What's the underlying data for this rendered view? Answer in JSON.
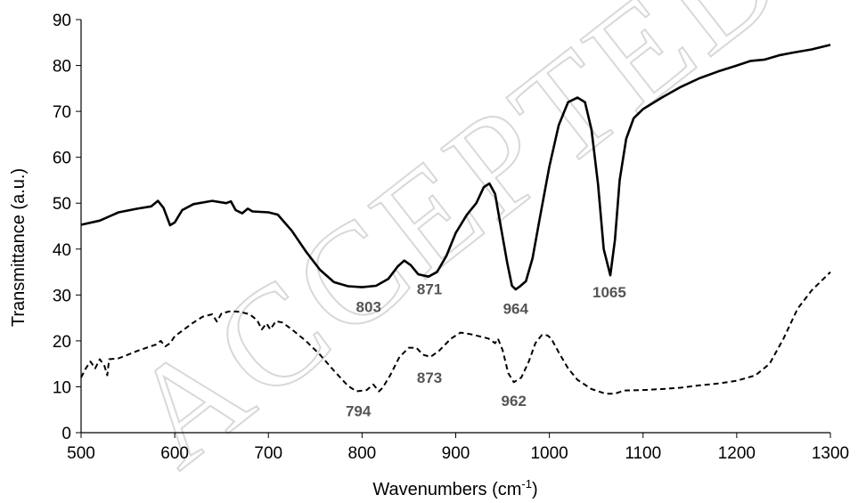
{
  "watermark": "ACCEPTED",
  "chart_data": {
    "type": "line",
    "title": "",
    "xlabel": "Wavenumbers (cm",
    "xlabel_sup": "-1",
    "xlabel_close": ")",
    "ylabel": "Transmittance (a.u.)",
    "xlim": [
      500,
      1300
    ],
    "ylim": [
      0,
      90
    ],
    "xticks": [
      500,
      600,
      700,
      800,
      900,
      1000,
      1100,
      1200,
      1300
    ],
    "yticks": [
      0,
      10,
      20,
      30,
      40,
      50,
      60,
      70,
      80,
      90
    ],
    "grid": false,
    "legend": "none",
    "series": [
      {
        "style": "solid",
        "color": "#000000",
        "points": [
          [
            500,
            45.3
          ],
          [
            520,
            46.2
          ],
          [
            540,
            48.0
          ],
          [
            560,
            48.8
          ],
          [
            575,
            49.3
          ],
          [
            582,
            50.5
          ],
          [
            588,
            49.0
          ],
          [
            595,
            45.2
          ],
          [
            600,
            45.8
          ],
          [
            608,
            48.5
          ],
          [
            620,
            49.8
          ],
          [
            640,
            50.5
          ],
          [
            655,
            50.0
          ],
          [
            660,
            50.4
          ],
          [
            665,
            48.5
          ],
          [
            672,
            47.8
          ],
          [
            678,
            48.8
          ],
          [
            683,
            48.2
          ],
          [
            700,
            48.0
          ],
          [
            710,
            47.5
          ],
          [
            725,
            44.0
          ],
          [
            740,
            39.5
          ],
          [
            755,
            35.5
          ],
          [
            770,
            32.8
          ],
          [
            785,
            31.9
          ],
          [
            800,
            31.7
          ],
          [
            815,
            32.0
          ],
          [
            828,
            33.5
          ],
          [
            838,
            36.2
          ],
          [
            845,
            37.5
          ],
          [
            852,
            36.5
          ],
          [
            860,
            34.5
          ],
          [
            871,
            34.0
          ],
          [
            880,
            35.0
          ],
          [
            890,
            38.5
          ],
          [
            900,
            43.5
          ],
          [
            912,
            47.5
          ],
          [
            922,
            50.0
          ],
          [
            930,
            53.5
          ],
          [
            936,
            54.3
          ],
          [
            942,
            52.0
          ],
          [
            948,
            45.0
          ],
          [
            955,
            37.0
          ],
          [
            960,
            32.0
          ],
          [
            964,
            31.2
          ],
          [
            968,
            31.8
          ],
          [
            975,
            33.0
          ],
          [
            982,
            38.0
          ],
          [
            990,
            47.0
          ],
          [
            1000,
            58.0
          ],
          [
            1010,
            67.0
          ],
          [
            1020,
            72.0
          ],
          [
            1030,
            73.0
          ],
          [
            1038,
            72.0
          ],
          [
            1045,
            66.0
          ],
          [
            1052,
            54.0
          ],
          [
            1058,
            40.0
          ],
          [
            1065,
            34.3
          ],
          [
            1070,
            42.0
          ],
          [
            1075,
            55.0
          ],
          [
            1082,
            64.0
          ],
          [
            1090,
            68.5
          ],
          [
            1100,
            70.5
          ],
          [
            1120,
            73.0
          ],
          [
            1140,
            75.3
          ],
          [
            1160,
            77.2
          ],
          [
            1180,
            78.7
          ],
          [
            1200,
            80.0
          ],
          [
            1215,
            81.0
          ],
          [
            1230,
            81.3
          ],
          [
            1245,
            82.2
          ],
          [
            1260,
            82.8
          ],
          [
            1280,
            83.5
          ],
          [
            1300,
            84.5
          ]
        ]
      },
      {
        "style": "dashed",
        "color": "#000000",
        "points": [
          [
            500,
            12.0
          ],
          [
            505,
            14.0
          ],
          [
            510,
            15.5
          ],
          [
            515,
            14.0
          ],
          [
            520,
            16.0
          ],
          [
            525,
            14.5
          ],
          [
            528,
            12.5
          ],
          [
            530,
            16.0
          ],
          [
            540,
            16.2
          ],
          [
            550,
            17.0
          ],
          [
            560,
            17.8
          ],
          [
            570,
            18.5
          ],
          [
            580,
            19.2
          ],
          [
            585,
            20.0
          ],
          [
            590,
            18.8
          ],
          [
            595,
            19.5
          ],
          [
            600,
            21.0
          ],
          [
            610,
            22.5
          ],
          [
            620,
            24.0
          ],
          [
            630,
            25.3
          ],
          [
            640,
            25.8
          ],
          [
            645,
            24.2
          ],
          [
            650,
            26.0
          ],
          [
            660,
            26.5
          ],
          [
            670,
            26.3
          ],
          [
            680,
            25.8
          ],
          [
            688,
            24.5
          ],
          [
            693,
            22.5
          ],
          [
            698,
            23.8
          ],
          [
            702,
            22.5
          ],
          [
            708,
            24.3
          ],
          [
            715,
            24.0
          ],
          [
            725,
            22.5
          ],
          [
            740,
            20.0
          ],
          [
            755,
            17.0
          ],
          [
            770,
            13.5
          ],
          [
            785,
            10.2
          ],
          [
            794,
            9.0
          ],
          [
            805,
            9.3
          ],
          [
            812,
            10.5
          ],
          [
            818,
            9.0
          ],
          [
            822,
            9.8
          ],
          [
            830,
            12.5
          ],
          [
            840,
            16.5
          ],
          [
            850,
            18.5
          ],
          [
            858,
            18.5
          ],
          [
            865,
            17.0
          ],
          [
            873,
            16.5
          ],
          [
            882,
            17.8
          ],
          [
            895,
            20.5
          ],
          [
            905,
            21.8
          ],
          [
            915,
            21.5
          ],
          [
            925,
            21.0
          ],
          [
            935,
            20.5
          ],
          [
            942,
            19.5
          ],
          [
            945,
            20.5
          ],
          [
            950,
            18.0
          ],
          [
            956,
            13.0
          ],
          [
            962,
            11.0
          ],
          [
            970,
            12.0
          ],
          [
            978,
            15.5
          ],
          [
            985,
            19.5
          ],
          [
            992,
            21.3
          ],
          [
            998,
            21.2
          ],
          [
            1002,
            20.5
          ],
          [
            1010,
            17.5
          ],
          [
            1020,
            14.0
          ],
          [
            1030,
            11.5
          ],
          [
            1045,
            9.5
          ],
          [
            1060,
            8.5
          ],
          [
            1070,
            8.5
          ],
          [
            1080,
            9.2
          ],
          [
            1100,
            9.3
          ],
          [
            1120,
            9.5
          ],
          [
            1140,
            9.8
          ],
          [
            1160,
            10.3
          ],
          [
            1180,
            10.7
          ],
          [
            1200,
            11.3
          ],
          [
            1220,
            12.5
          ],
          [
            1235,
            15.0
          ],
          [
            1250,
            20.5
          ],
          [
            1265,
            27.0
          ],
          [
            1280,
            31.0
          ],
          [
            1300,
            35.0
          ]
        ]
      }
    ],
    "annotations": [
      {
        "text": "803",
        "x": 807,
        "y": 26.3
      },
      {
        "text": "871",
        "x": 872,
        "y": 30.2
      },
      {
        "text": "964",
        "x": 964,
        "y": 25.9
      },
      {
        "text": "1065",
        "x": 1064,
        "y": 29.5
      },
      {
        "text": "794",
        "x": 796,
        "y": 3.6
      },
      {
        "text": "873",
        "x": 872,
        "y": 10.9
      },
      {
        "text": "962",
        "x": 962,
        "y": 5.8
      }
    ]
  }
}
